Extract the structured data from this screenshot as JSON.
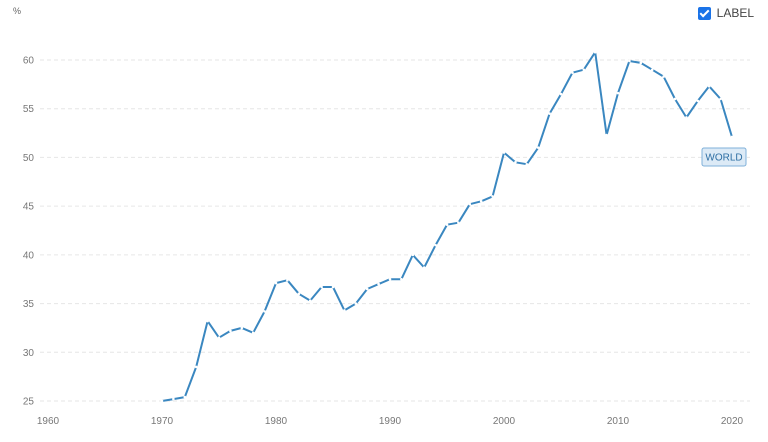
{
  "chart_data": {
    "type": "line",
    "ylabel": "%",
    "xlim": [
      1960,
      2020
    ],
    "ylim": [
      25,
      62
    ],
    "x_ticks": [
      1960,
      1970,
      1980,
      1990,
      2000,
      2010,
      2020
    ],
    "y_ticks": [
      25,
      30,
      35,
      40,
      45,
      50,
      55,
      60
    ],
    "grid": "horizontal dashed",
    "legend": {
      "label": "LABEL",
      "checked": true,
      "placement": "top-right"
    },
    "colors": {
      "line": "#3a87c0",
      "grid": "#e6e6e6",
      "label_bg": "#dceaf6",
      "label_border": "#7fb0d9"
    },
    "series": [
      {
        "name": "WORLD",
        "x": [
          1970,
          1971,
          1972,
          1973,
          1974,
          1975,
          1976,
          1977,
          1978,
          1979,
          1980,
          1981,
          1982,
          1983,
          1984,
          1985,
          1986,
          1987,
          1988,
          1989,
          1990,
          1991,
          1992,
          1993,
          1994,
          1995,
          1996,
          1997,
          1998,
          1999,
          2000,
          2001,
          2002,
          2003,
          2004,
          2005,
          2006,
          2007,
          2008,
          2009,
          2010,
          2011,
          2012,
          2013,
          2014,
          2015,
          2016,
          2017,
          2018,
          2019,
          2020
        ],
        "values": [
          25.0,
          25.2,
          25.4,
          28.5,
          33.2,
          31.5,
          32.2,
          32.5,
          32.0,
          34.2,
          37.1,
          37.4,
          36.0,
          35.3,
          36.7,
          36.7,
          34.3,
          35.0,
          36.5,
          37.0,
          37.5,
          37.5,
          40.0,
          38.7,
          41.0,
          43.1,
          43.3,
          45.2,
          45.5,
          46.0,
          50.5,
          49.5,
          49.3,
          51.0,
          54.5,
          56.5,
          58.7,
          59.0,
          60.8,
          52.3,
          56.6,
          59.9,
          59.7,
          59.0,
          58.3,
          56.0,
          54.1,
          55.8,
          57.3,
          56.0,
          52.1
        ]
      }
    ]
  }
}
